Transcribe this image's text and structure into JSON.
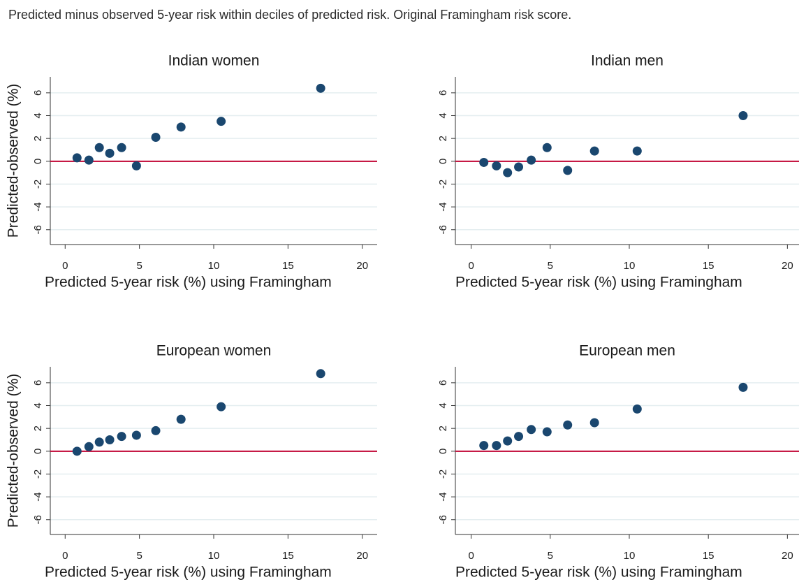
{
  "title": "Predicted minus observed 5-year risk within deciles of predicted risk. Original Framingham risk score.",
  "chart_data": [
    {
      "type": "scatter",
      "title": "Indian women",
      "xlabel": "Predicted 5-year risk (%) using Framingham",
      "ylabel": "Predicted-observed (%)",
      "x": [
        0.8,
        1.6,
        2.3,
        3.0,
        3.8,
        4.8,
        6.1,
        7.8,
        10.5,
        17.2
      ],
      "values": [
        0.3,
        0.1,
        1.2,
        0.7,
        1.2,
        -0.4,
        2.1,
        3.0,
        3.5,
        6.4
      ],
      "color": "#1a476f",
      "xlim": [
        -1,
        21
      ],
      "ylim": [
        -7.3,
        7.4
      ],
      "xticks": [
        0,
        5,
        10,
        15,
        20
      ],
      "yticks": [
        -6,
        -4,
        -2,
        0,
        2,
        4,
        6
      ],
      "grid": true,
      "hline": 0,
      "hline_color": "#c10534"
    },
    {
      "type": "scatter",
      "title": "Indian men",
      "xlabel": "Predicted 5-year risk (%) using Framingham",
      "x": [
        0.8,
        1.6,
        2.3,
        3.0,
        3.8,
        4.8,
        6.1,
        7.8,
        10.5,
        17.2
      ],
      "values": [
        -0.1,
        -0.4,
        -1.0,
        -0.5,
        0.1,
        1.2,
        -0.8,
        0.9,
        0.9,
        4.0
      ],
      "color": "#1a476f",
      "xlim": [
        -1,
        21
      ],
      "ylim": [
        -7.3,
        7.4
      ],
      "xticks": [
        0,
        5,
        10,
        15,
        20
      ],
      "yticks": [
        -6,
        -4,
        -2,
        0,
        2,
        4,
        6
      ],
      "grid": true,
      "hline": 0,
      "hline_color": "#c10534"
    },
    {
      "type": "scatter",
      "title": "European women",
      "xlabel": "Predicted 5-year risk (%) using Framingham",
      "ylabel": "Predicted-observed (%)",
      "x": [
        0.8,
        1.6,
        2.3,
        3.0,
        3.8,
        4.8,
        6.1,
        7.8,
        10.5,
        17.2
      ],
      "values": [
        0.0,
        0.4,
        0.8,
        1.0,
        1.3,
        1.4,
        1.8,
        2.8,
        3.9,
        6.8
      ],
      "color": "#1a476f",
      "xlim": [
        -1,
        21
      ],
      "ylim": [
        -7.3,
        7.4
      ],
      "xticks": [
        0,
        5,
        10,
        15,
        20
      ],
      "yticks": [
        -6,
        -4,
        -2,
        0,
        2,
        4,
        6
      ],
      "grid": true,
      "hline": 0,
      "hline_color": "#c10534"
    },
    {
      "type": "scatter",
      "title": "European men",
      "xlabel": "Predicted 5-year risk (%) using Framingham",
      "x": [
        0.8,
        1.6,
        2.3,
        3.0,
        3.8,
        4.8,
        6.1,
        7.8,
        10.5,
        17.2
      ],
      "values": [
        0.5,
        0.5,
        0.9,
        1.3,
        1.9,
        1.7,
        2.3,
        2.5,
        3.7,
        5.6
      ],
      "color": "#1a476f",
      "xlim": [
        -1,
        21
      ],
      "ylim": [
        -7.3,
        7.4
      ],
      "xticks": [
        0,
        5,
        10,
        15,
        20
      ],
      "yticks": [
        -6,
        -4,
        -2,
        0,
        2,
        4,
        6
      ],
      "grid": true,
      "hline": 0,
      "hline_color": "#c10534"
    }
  ]
}
